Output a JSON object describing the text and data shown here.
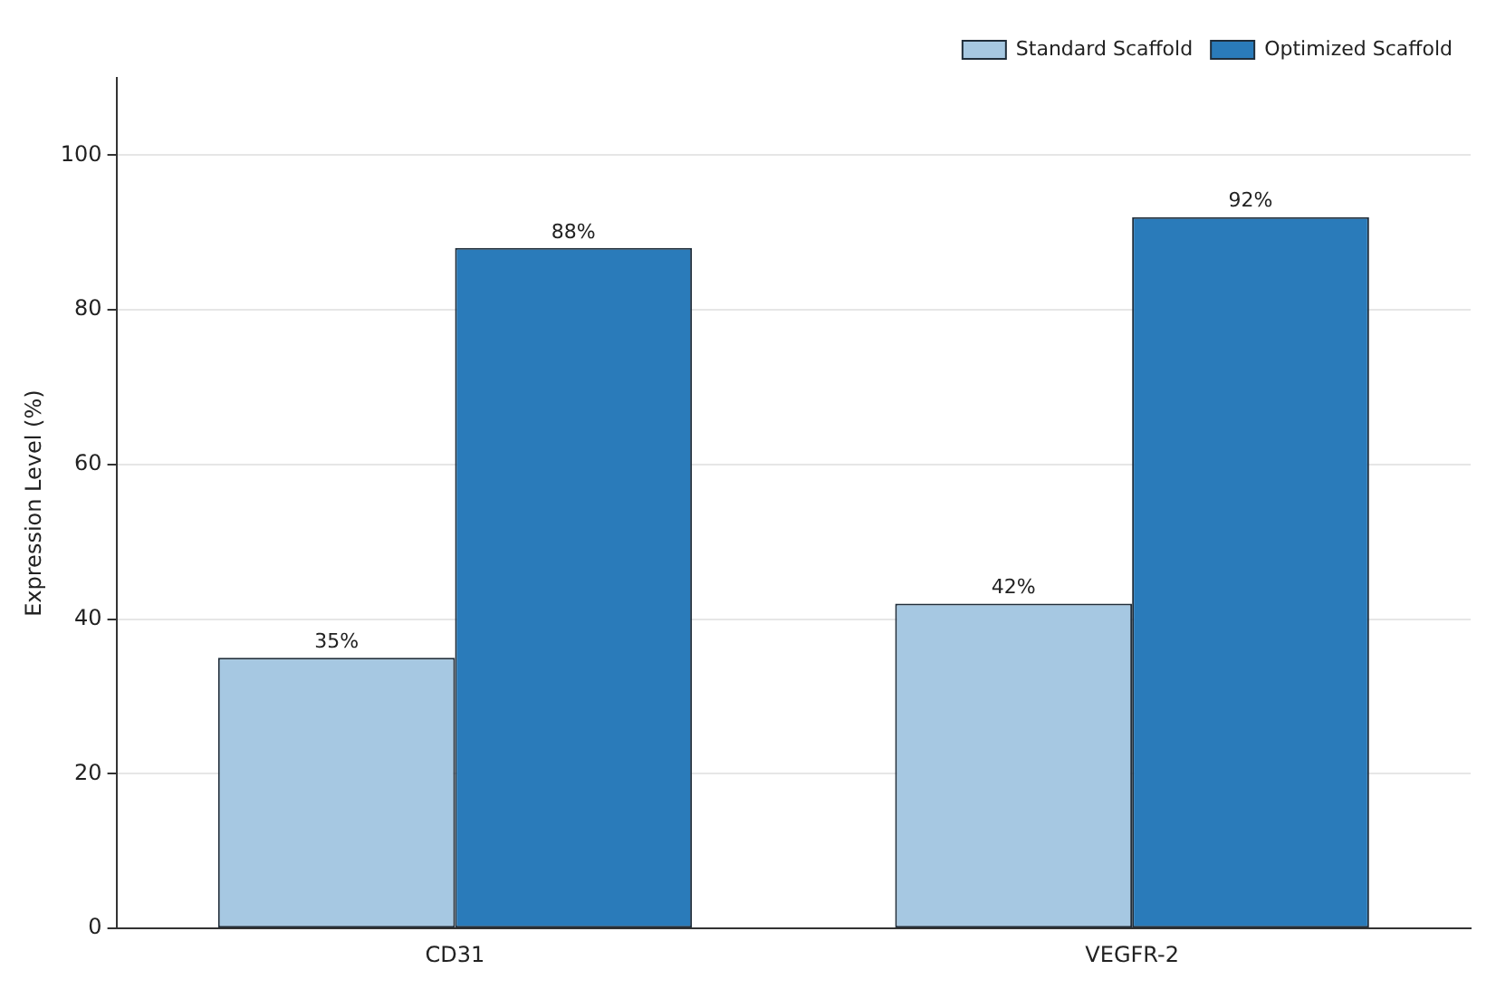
{
  "chart_data": {
    "type": "bar",
    "ylabel": "Expression Level (%)",
    "categories": [
      "CD31",
      "VEGFR-2"
    ],
    "series": [
      {
        "name": "Standard Scaffold",
        "color": "#a6c8e2",
        "values": [
          35,
          42
        ],
        "value_labels": [
          "35%",
          "42%"
        ]
      },
      {
        "name": "Optimized Scaffold",
        "color": "#2a7bba",
        "values": [
          88,
          92
        ],
        "value_labels": [
          "88%",
          "92%"
        ]
      }
    ],
    "ylim": [
      0,
      110
    ],
    "yticks": [
      0,
      20,
      40,
      60,
      80,
      100
    ],
    "grid": "y",
    "legend": "top right"
  }
}
